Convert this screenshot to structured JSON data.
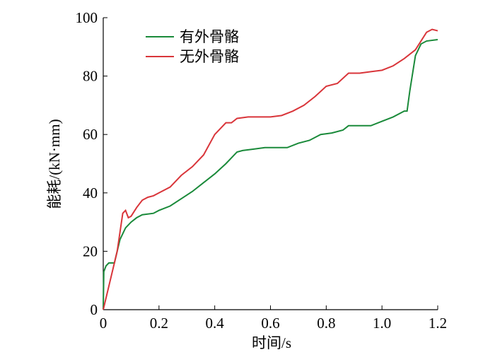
{
  "chart_data": {
    "type": "line",
    "xlabel": "时间/s",
    "ylabel": "能耗/(kN·mm)",
    "xlim": [
      0,
      1.2
    ],
    "xticks": [
      0,
      0.2,
      0.4,
      0.6,
      0.8,
      {
        "value": 1,
        "label": "1.0"
      },
      1.2
    ],
    "ylim": [
      0,
      100
    ],
    "yticks": [
      0,
      20,
      40,
      60,
      80,
      100
    ],
    "legend": "upper left",
    "series": [
      {
        "name": "有外骨骼",
        "color": "#1a8a3a",
        "x": [
          0,
          0.002,
          0.01,
          0.02,
          0.04,
          0.05,
          0.06,
          0.08,
          0.1,
          0.12,
          0.14,
          0.18,
          0.2,
          0.24,
          0.28,
          0.32,
          0.36,
          0.4,
          0.44,
          0.48,
          0.5,
          0.54,
          0.58,
          0.62,
          0.66,
          0.7,
          0.74,
          0.78,
          0.82,
          0.86,
          0.88,
          0.92,
          0.96,
          1.0,
          1.04,
          1.08,
          1.09,
          1.1,
          1.12,
          1.14,
          1.16,
          1.2
        ],
        "values": [
          0,
          13,
          15,
          16,
          16,
          20,
          24,
          28,
          30,
          31.5,
          32.5,
          33,
          34,
          35.5,
          38,
          40.5,
          43.5,
          46.5,
          50,
          54,
          54.5,
          55,
          55.5,
          55.5,
          55.5,
          57,
          58,
          60,
          60.5,
          61.5,
          63,
          63,
          63,
          64.5,
          66,
          68,
          68,
          75,
          87,
          91,
          92,
          92.5
        ]
      },
      {
        "name": "无外骨骼",
        "color": "#d9353a",
        "x": [
          0,
          0.05,
          0.07,
          0.08,
          0.09,
          0.1,
          0.12,
          0.14,
          0.16,
          0.18,
          0.2,
          0.24,
          0.28,
          0.32,
          0.36,
          0.4,
          0.44,
          0.46,
          0.48,
          0.52,
          0.56,
          0.6,
          0.64,
          0.68,
          0.72,
          0.76,
          0.8,
          0.84,
          0.88,
          0.92,
          0.96,
          1.0,
          1.04,
          1.08,
          1.12,
          1.14,
          1.16,
          1.18,
          1.2
        ],
        "values": [
          0,
          20,
          33,
          34,
          31.5,
          32,
          35,
          37.5,
          38.5,
          39,
          40,
          42,
          46,
          49,
          53,
          60,
          64,
          64,
          65.5,
          66,
          66,
          66,
          66.5,
          68,
          70,
          73,
          76.5,
          77.5,
          81,
          81,
          81.5,
          82,
          83.5,
          86,
          89,
          92,
          95,
          96,
          95.5
        ]
      }
    ]
  }
}
